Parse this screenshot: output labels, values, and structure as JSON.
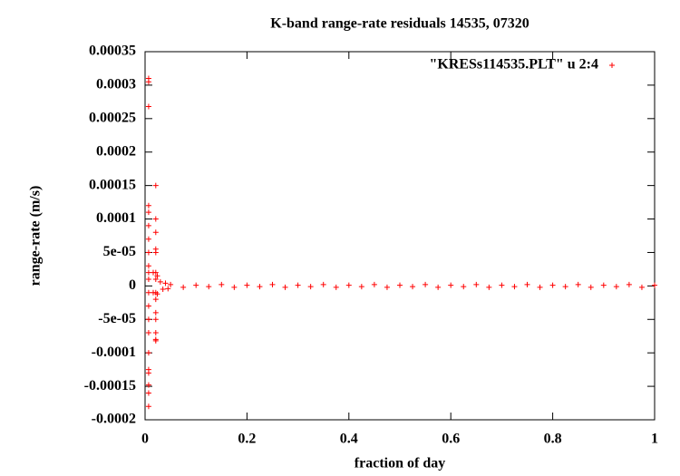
{
  "chart_data": {
    "type": "scatter",
    "title": "K-band range-rate residuals 14535, 07320",
    "x_label": "fraction of day",
    "y_label": "range-rate (m/s)",
    "xlim": [
      0,
      1
    ],
    "ylim": [
      -0.0002,
      0.00035
    ],
    "xticks": [
      0,
      0.2,
      0.4,
      0.6,
      0.8,
      1
    ],
    "yticks": [
      -0.0002,
      -0.00015,
      -0.0001,
      {
        "value": -5e-05,
        "label": "-5e-05"
      },
      0,
      {
        "value": 5e-05,
        "label": "5e-05"
      },
      0.0001,
      0.00015,
      0.0002,
      0.00025,
      0.0003,
      0.00035
    ],
    "legend": "upper right",
    "x": [
      0.007,
      0.007,
      0.007,
      0.007,
      0.007,
      0.007,
      0.007,
      0.007,
      0.007,
      0.007,
      0.007,
      0.007,
      0.007,
      0.007,
      0.007,
      0.007,
      0.007,
      0.007,
      0.007,
      0.007,
      0.007,
      0.021,
      0.021,
      0.021,
      0.021,
      0.021,
      0.021,
      0.021,
      0.021,
      0.021,
      0.021,
      0.021,
      0.021,
      0.021,
      0.021,
      0.016,
      0.016,
      0.024,
      0.024,
      0.03,
      0.035,
      0.04,
      0.045,
      0.05,
      0.075,
      0.1,
      0.125,
      0.15,
      0.175,
      0.2,
      0.225,
      0.25,
      0.275,
      0.3,
      0.325,
      0.35,
      0.375,
      0.4,
      0.425,
      0.45,
      0.475,
      0.5,
      0.525,
      0.55,
      0.575,
      0.6,
      0.625,
      0.65,
      0.675,
      0.7,
      0.725,
      0.75,
      0.775,
      0.8,
      0.825,
      0.85,
      0.875,
      0.9,
      0.925,
      0.95,
      0.975,
      1.0
    ],
    "series": [
      {
        "name": "\"KRESs114535.PLT\" u 2:4",
        "color": "#ff0000",
        "values": [
          0.000305,
          0.00031,
          0.000268,
          0.00012,
          0.00011,
          9e-05,
          7e-05,
          5e-05,
          3e-05,
          2e-05,
          1e-05,
          -1e-05,
          -3e-05,
          -5e-05,
          -7e-05,
          -0.0001,
          -0.000125,
          -0.00013,
          -0.000148,
          -0.00016,
          -0.00018,
          0.00015,
          0.0001,
          8e-05,
          5.5e-05,
          5e-05,
          2e-05,
          1e-05,
          -1e-05,
          -2e-05,
          -4e-05,
          -5e-05,
          -7e-05,
          -8e-05,
          -8.2e-05,
          2e-05,
          -1e-05,
          1.5e-05,
          -1.2e-05,
          6e-06,
          -5e-06,
          4e-06,
          -4e-06,
          2e-06,
          -2e-06,
          1e-06,
          -1e-06,
          2e-06,
          -2e-06,
          1e-06,
          -1e-06,
          2e-06,
          -2e-06,
          1e-06,
          -1e-06,
          2e-06,
          -2e-06,
          1e-06,
          -1e-06,
          2e-06,
          -2e-06,
          1e-06,
          -1e-06,
          2e-06,
          -2e-06,
          1e-06,
          -1e-06,
          2e-06,
          -2e-06,
          1e-06,
          -1e-06,
          2e-06,
          -2e-06,
          1e-06,
          -1e-06,
          2e-06,
          -2e-06,
          1e-06,
          -1e-06,
          2e-06,
          -2e-06,
          1e-06
        ]
      }
    ]
  }
}
